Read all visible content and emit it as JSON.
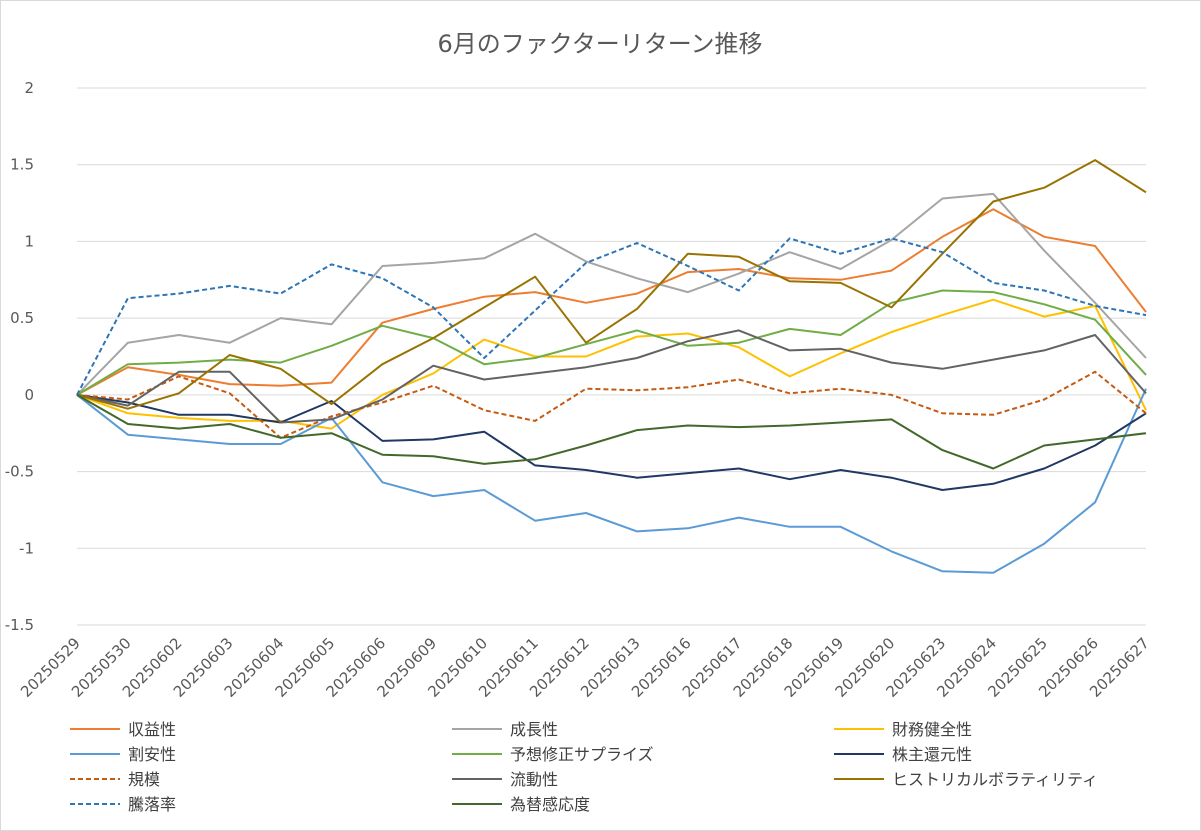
{
  "chart_data": {
    "type": "line",
    "title": "6月のファクターリターン推移",
    "xlabel": "",
    "ylabel": "",
    "ylim": [
      -1.5,
      2
    ],
    "yticks": [
      2,
      1.5,
      1,
      0.5,
      0,
      -0.5,
      -1,
      -1.5
    ],
    "ytick_labels": [
      "2",
      "1.5",
      "1",
      "0.5",
      "0",
      "-0.5",
      "-1",
      "-1.5"
    ],
    "grid": true,
    "legend_position": "bottom",
    "categories": [
      "20250529",
      "20250530",
      "20250602",
      "20250603",
      "20250604",
      "20250605",
      "20250606",
      "20250609",
      "20250610",
      "20250611",
      "20250612",
      "20250613",
      "20250616",
      "20250617",
      "20250618",
      "20250619",
      "20250620",
      "20250623",
      "20250624",
      "20250625",
      "20250626",
      "20250627"
    ],
    "series": [
      {
        "name": "収益性",
        "color": "#ed7d31",
        "dash": false,
        "values": [
          0,
          0.18,
          0.13,
          0.07,
          0.06,
          0.08,
          0.47,
          0.56,
          0.64,
          0.67,
          0.6,
          0.66,
          0.8,
          0.82,
          0.76,
          0.75,
          0.81,
          1.03,
          1.21,
          1.03,
          0.97,
          0.54
        ]
      },
      {
        "name": "成長性",
        "color": "#a5a5a5",
        "dash": false,
        "values": [
          0,
          0.34,
          0.39,
          0.34,
          0.5,
          0.46,
          0.84,
          0.86,
          0.89,
          1.05,
          0.87,
          0.76,
          0.67,
          0.79,
          0.93,
          0.82,
          1.01,
          1.28,
          1.31,
          0.94,
          0.6,
          0.24
        ]
      },
      {
        "name": "財務健全性",
        "color": "#ffc000",
        "dash": false,
        "values": [
          0,
          -0.12,
          -0.15,
          -0.17,
          -0.17,
          -0.22,
          0.0,
          0.14,
          0.36,
          0.25,
          0.25,
          0.38,
          0.4,
          0.31,
          0.12,
          0.27,
          0.41,
          0.52,
          0.62,
          0.51,
          0.58,
          -0.1
        ]
      },
      {
        "name": "割安性",
        "color": "#5b9bd5",
        "dash": false,
        "values": [
          0,
          -0.26,
          -0.29,
          -0.32,
          -0.32,
          -0.15,
          -0.57,
          -0.66,
          -0.62,
          -0.82,
          -0.77,
          -0.89,
          -0.87,
          -0.8,
          -0.86,
          -0.86,
          -1.02,
          -1.15,
          -1.16,
          -0.97,
          -0.7,
          0.04
        ]
      },
      {
        "name": "予想修正サプライズ",
        "color": "#70ad47",
        "dash": false,
        "values": [
          0,
          0.2,
          0.21,
          0.23,
          0.21,
          0.32,
          0.45,
          0.37,
          0.2,
          0.24,
          0.33,
          0.42,
          0.32,
          0.34,
          0.43,
          0.39,
          0.6,
          0.68,
          0.67,
          0.59,
          0.49,
          0.13
        ]
      },
      {
        "name": "株主還元性",
        "color": "#203864",
        "dash": false,
        "values": [
          0,
          -0.05,
          -0.13,
          -0.13,
          -0.18,
          -0.04,
          -0.3,
          -0.29,
          -0.24,
          -0.46,
          -0.49,
          -0.54,
          -0.51,
          -0.48,
          -0.55,
          -0.49,
          -0.54,
          -0.62,
          -0.58,
          -0.48,
          -0.33,
          -0.12
        ]
      },
      {
        "name": "規模",
        "color": "#c55a11",
        "dash": true,
        "values": [
          0,
          -0.03,
          0.12,
          0.01,
          -0.28,
          -0.14,
          -0.05,
          0.06,
          -0.1,
          -0.17,
          0.04,
          0.03,
          0.05,
          0.1,
          0.01,
          0.04,
          0.0,
          -0.12,
          -0.13,
          -0.03,
          0.15,
          -0.12
        ]
      },
      {
        "name": "流動性",
        "color": "#636363",
        "dash": false,
        "values": [
          0,
          -0.07,
          0.15,
          0.15,
          -0.18,
          -0.16,
          -0.03,
          0.19,
          0.1,
          0.14,
          0.18,
          0.24,
          0.35,
          0.42,
          0.29,
          0.3,
          0.21,
          0.17,
          0.23,
          0.29,
          0.39,
          0.01
        ]
      },
      {
        "name": "ヒストリカルボラティリティ",
        "color": "#997300",
        "dash": false,
        "values": [
          0,
          -0.09,
          0.01,
          0.26,
          0.17,
          -0.06,
          0.2,
          0.37,
          0.57,
          0.77,
          0.34,
          0.56,
          0.92,
          0.9,
          0.74,
          0.73,
          0.57,
          0.92,
          1.26,
          1.35,
          1.53,
          1.32
        ]
      },
      {
        "name": "騰落率",
        "color": "#2e75b6",
        "dash": true,
        "values": [
          0,
          0.63,
          0.66,
          0.71,
          0.66,
          0.85,
          0.76,
          0.57,
          0.24,
          0.55,
          0.86,
          0.99,
          0.84,
          0.68,
          1.02,
          0.92,
          1.02,
          0.93,
          0.73,
          0.68,
          0.58,
          0.52
        ]
      },
      {
        "name": "為替感応度",
        "color": "#43682b",
        "dash": false,
        "values": [
          0,
          -0.19,
          -0.22,
          -0.19,
          -0.28,
          -0.25,
          -0.39,
          -0.4,
          -0.45,
          -0.42,
          -0.33,
          -0.23,
          -0.2,
          -0.21,
          -0.2,
          -0.18,
          -0.16,
          -0.36,
          -0.48,
          -0.33,
          -0.29,
          -0.25
        ]
      }
    ]
  }
}
